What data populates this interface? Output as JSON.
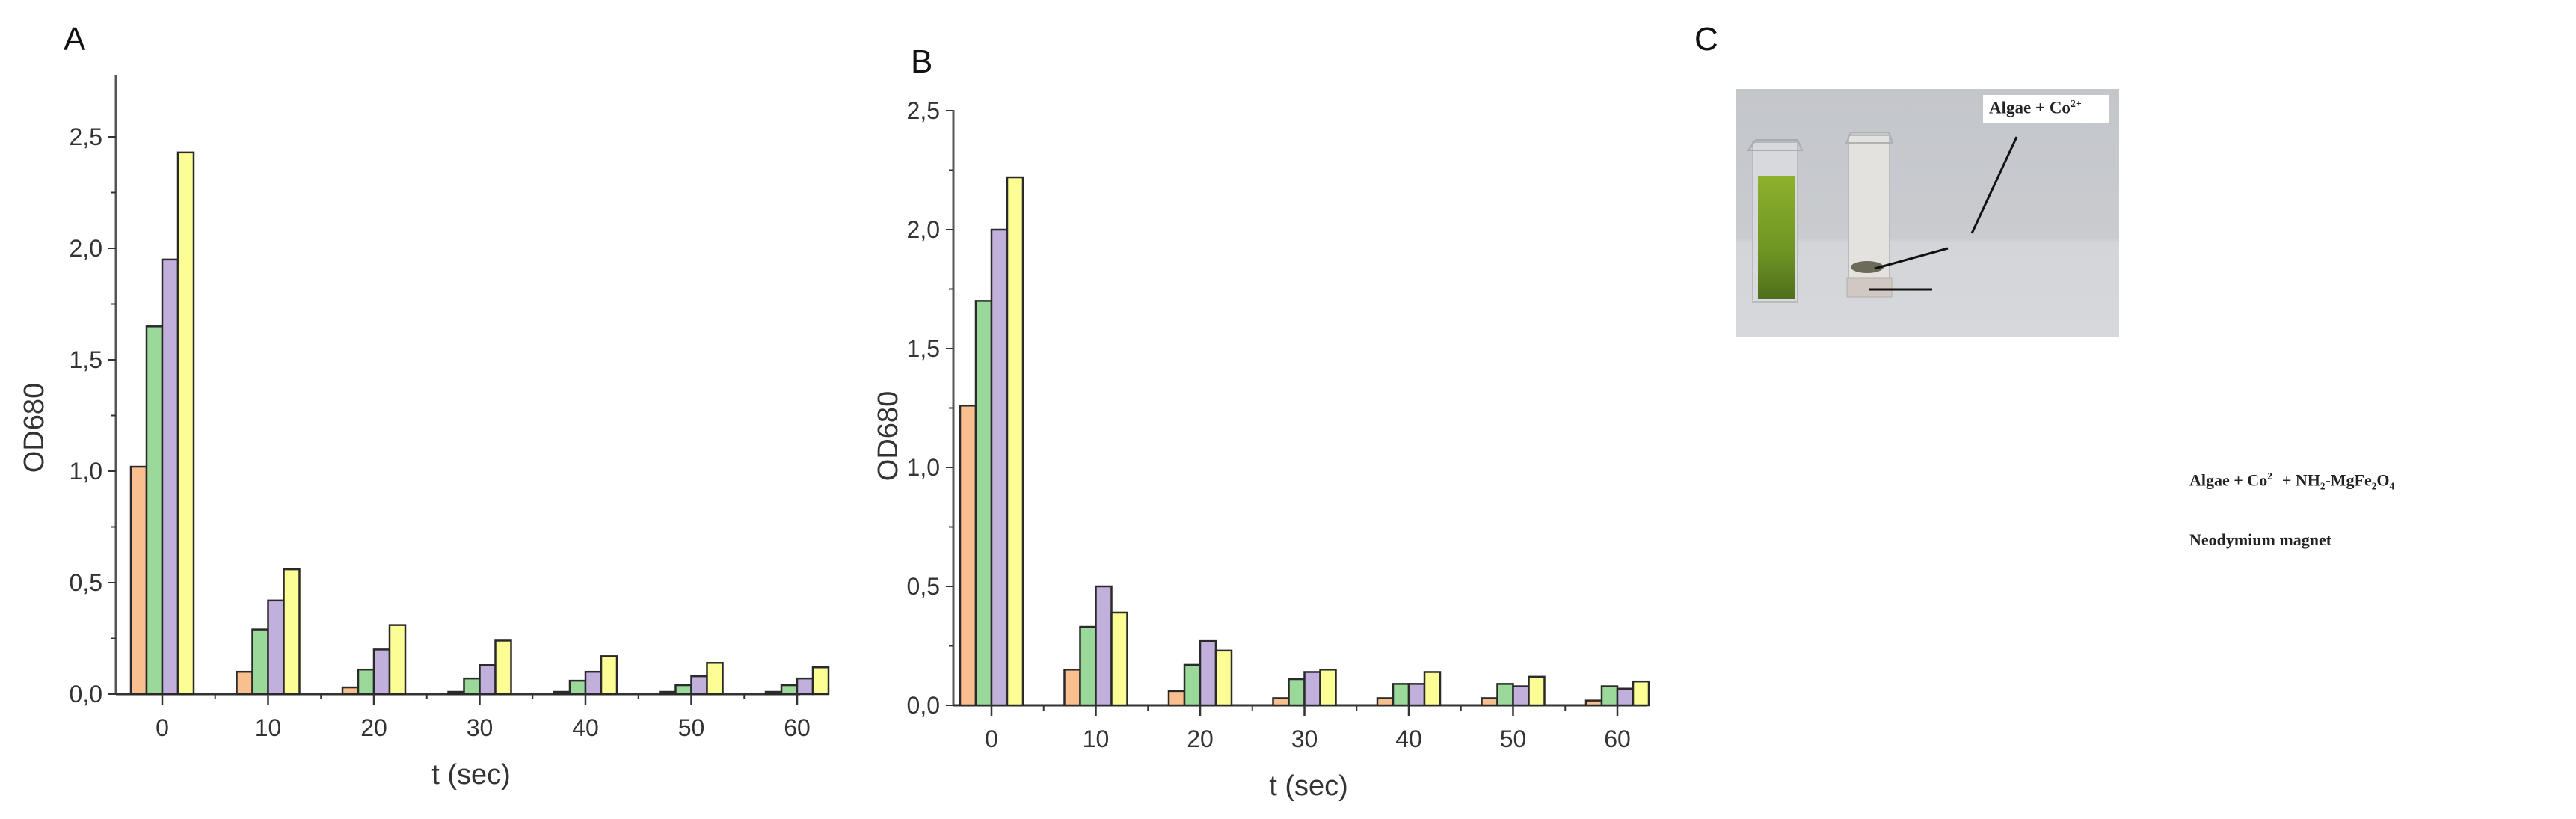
{
  "panels": {
    "a": {
      "letter": "A"
    },
    "b": {
      "letter": "B"
    },
    "c": {
      "letter": "C"
    }
  },
  "colors": {
    "series": [
      "#f9bf8f",
      "#9bd99b",
      "#c2b0dc",
      "#fdfd96"
    ],
    "bar_outline": "#2a2a2a",
    "axis": "#555555",
    "photo_background": "#c9cbcf",
    "algae_green": "#7ea52a"
  },
  "photo_labels": {
    "top": {
      "main": "Algae + Co",
      "sup": "2+"
    },
    "middle": {
      "p1": "Algae + Co",
      "sup": "2+",
      "p2": " + NH",
      "sub1": "2",
      "p3": "-MgFe",
      "sub2": "2",
      "p4": "O",
      "sub3": "4"
    },
    "bottom": "Neodymium magnet"
  },
  "chart_data": [
    {
      "id": "A",
      "type": "bar",
      "title": "A",
      "xlabel": "t (sec)",
      "ylabel": "OD680",
      "categories": [
        "0",
        "10",
        "20",
        "30",
        "40",
        "50",
        "60"
      ],
      "y_ticks": [
        "0,0",
        "0,5",
        "1,0",
        "1,5",
        "2,0",
        "2,5"
      ],
      "ylim": [
        0,
        2.75
      ],
      "grid": false,
      "legend": "none",
      "series": [
        {
          "name": "series 1 (orange)",
          "values": [
            1.02,
            0.1,
            0.03,
            0.01,
            0.01,
            0.01,
            0.01
          ]
        },
        {
          "name": "series 2 (green)",
          "values": [
            1.65,
            0.29,
            0.11,
            0.07,
            0.06,
            0.04,
            0.04
          ]
        },
        {
          "name": "series 3 (purple)",
          "values": [
            1.95,
            0.42,
            0.2,
            0.13,
            0.1,
            0.08,
            0.07
          ]
        },
        {
          "name": "series 4 (yellow)",
          "values": [
            2.43,
            0.56,
            0.31,
            0.24,
            0.17,
            0.14,
            0.12
          ]
        }
      ]
    },
    {
      "id": "B",
      "type": "bar",
      "title": "B",
      "xlabel": "t (sec)",
      "ylabel": "OD680",
      "categories": [
        "0",
        "10",
        "20",
        "30",
        "40",
        "50",
        "60"
      ],
      "y_ticks": [
        "0,0",
        "0,5",
        "1,0",
        "1,5",
        "2,0",
        "2,5"
      ],
      "ylim": [
        0,
        2.5
      ],
      "grid": false,
      "legend": "none",
      "series": [
        {
          "name": "series 1 (orange)",
          "values": [
            1.26,
            0.15,
            0.06,
            0.03,
            0.03,
            0.03,
            0.02
          ]
        },
        {
          "name": "series 2 (green)",
          "values": [
            1.7,
            0.33,
            0.17,
            0.11,
            0.09,
            0.09,
            0.08
          ]
        },
        {
          "name": "series 3 (purple)",
          "values": [
            2.0,
            0.5,
            0.27,
            0.14,
            0.09,
            0.08,
            0.07
          ]
        },
        {
          "name": "series 4 (yellow)",
          "values": [
            2.22,
            0.39,
            0.23,
            0.15,
            0.14,
            0.12,
            0.1
          ]
        }
      ]
    }
  ]
}
